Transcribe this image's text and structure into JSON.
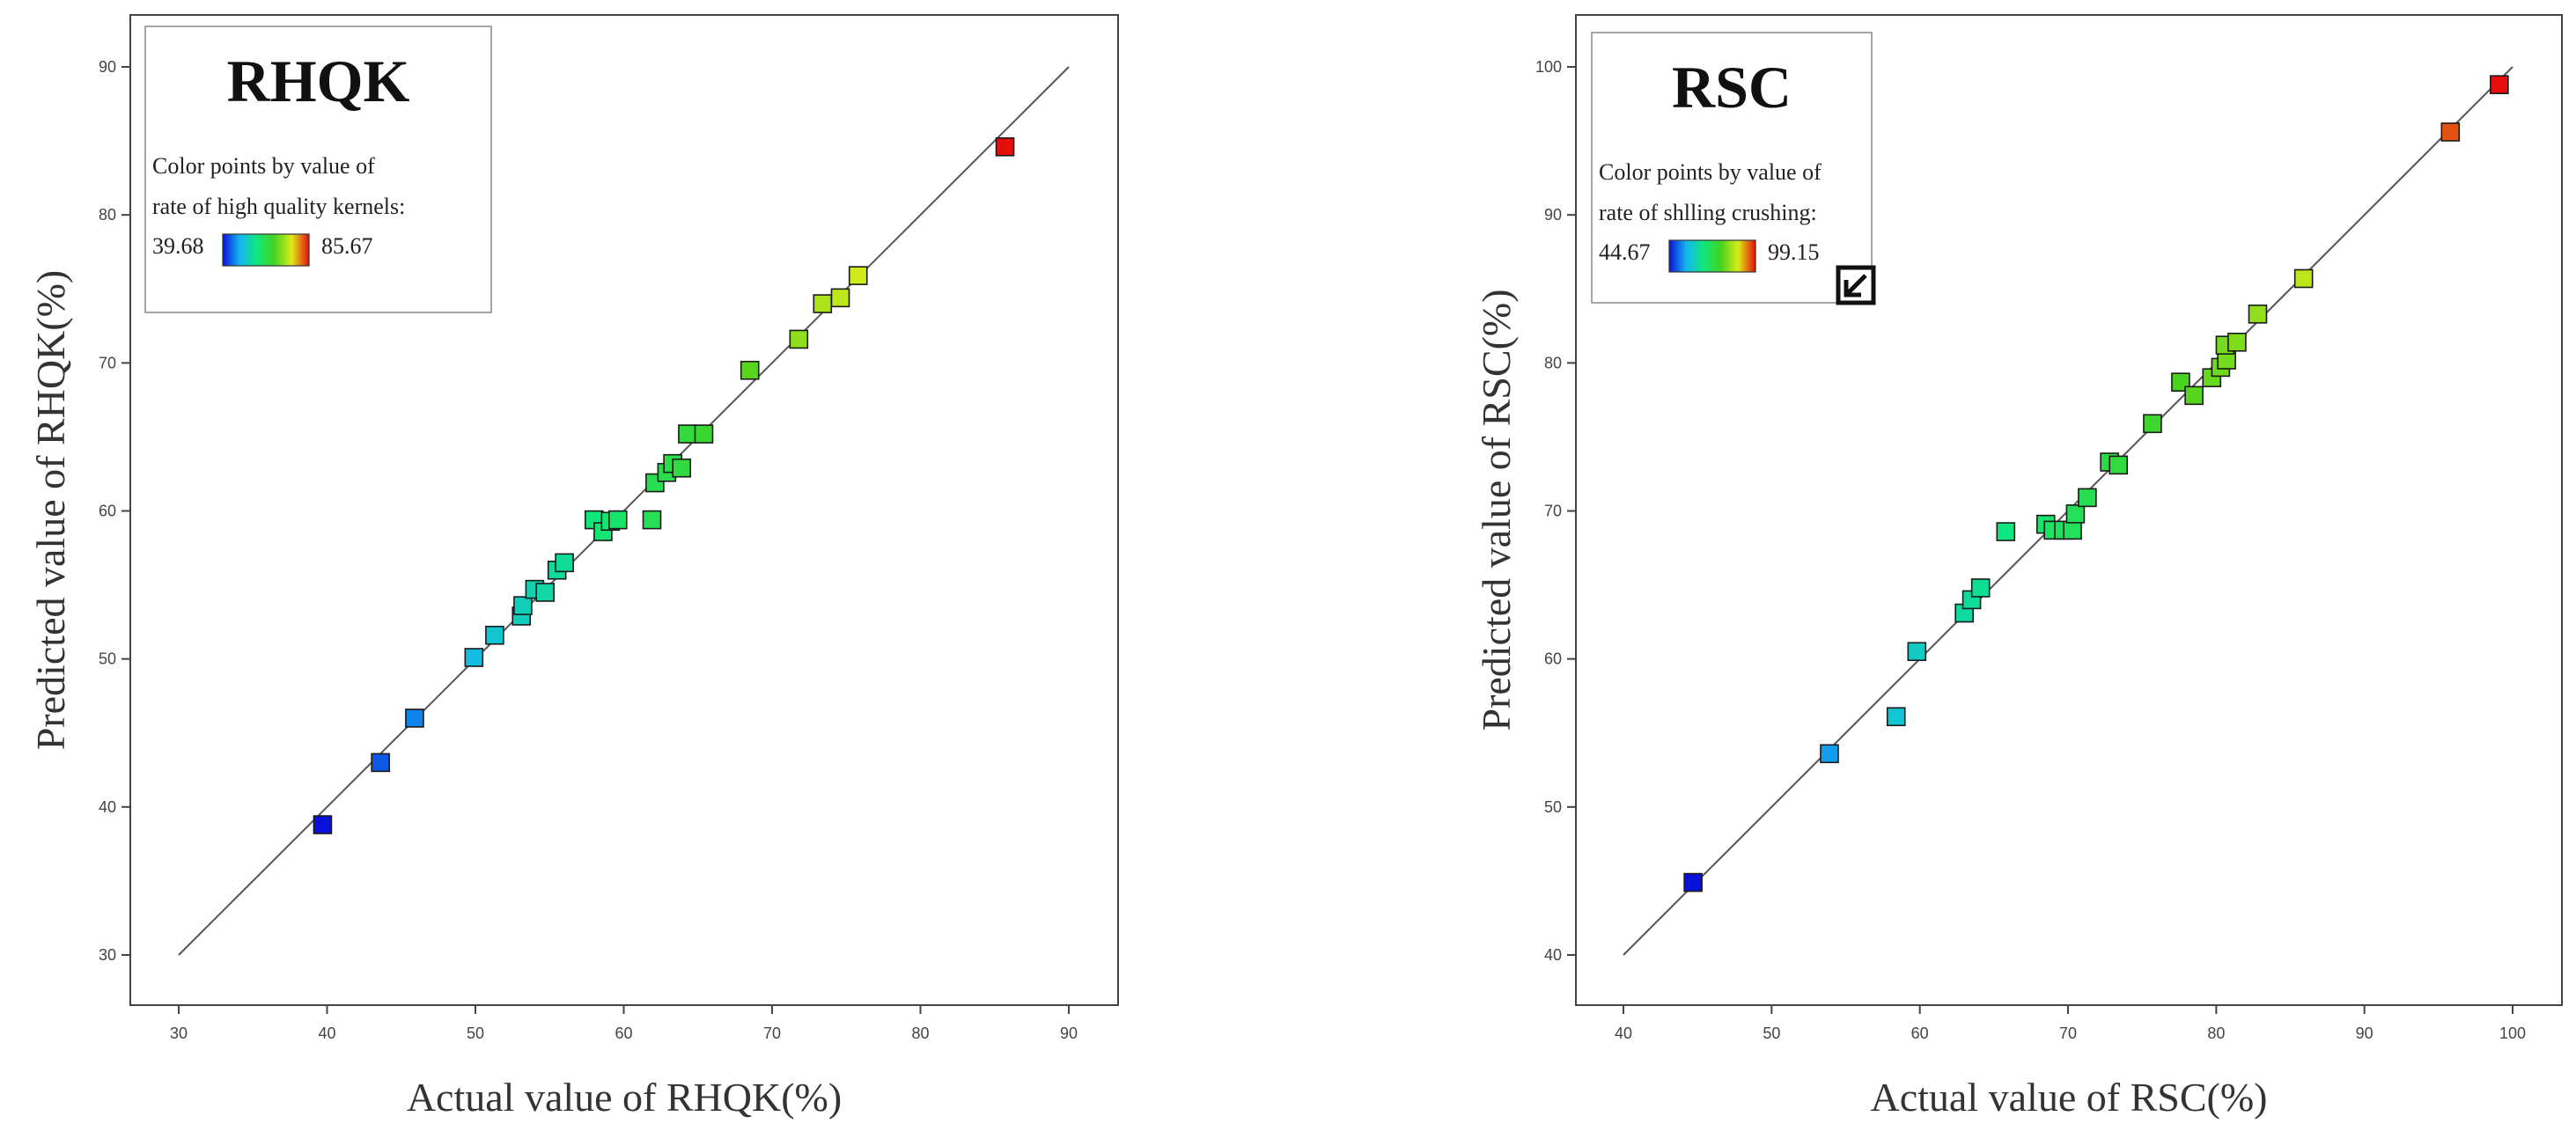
{
  "chart_data": [
    {
      "type": "scatter",
      "id": "rhqk",
      "title": "RHQK",
      "xlabel": "Actual value of  RHQK(%)",
      "ylabel": "Predicted value of RHQK(%)",
      "xlim": [
        30,
        90
      ],
      "ylim": [
        30,
        90
      ],
      "xticks": [
        "30",
        "40",
        "50",
        "60",
        "70",
        "80",
        "90"
      ],
      "yticks": [
        "30",
        "40",
        "50",
        "60",
        "70",
        "80",
        "90"
      ],
      "reference_line": [
        [
          30,
          30
        ],
        [
          90,
          90
        ]
      ],
      "legend": {
        "line1": "Color points by value of",
        "line2": "rate of high quality kernels:",
        "min_label": "39.68",
        "max_label": "85.67",
        "min": 39.68,
        "max": 85.67
      },
      "points": [
        {
          "x": 39.7,
          "y": 38.8
        },
        {
          "x": 43.6,
          "y": 43.0
        },
        {
          "x": 45.9,
          "y": 46.0
        },
        {
          "x": 49.9,
          "y": 50.1
        },
        {
          "x": 51.3,
          "y": 51.6
        },
        {
          "x": 53.1,
          "y": 52.9
        },
        {
          "x": 53.2,
          "y": 53.6
        },
        {
          "x": 54.0,
          "y": 54.7
        },
        {
          "x": 54.7,
          "y": 54.5
        },
        {
          "x": 55.5,
          "y": 56.0
        },
        {
          "x": 56.0,
          "y": 56.5
        },
        {
          "x": 58.0,
          "y": 59.4
        },
        {
          "x": 58.6,
          "y": 58.6
        },
        {
          "x": 59.1,
          "y": 59.3
        },
        {
          "x": 59.6,
          "y": 59.4
        },
        {
          "x": 61.9,
          "y": 59.4
        },
        {
          "x": 62.1,
          "y": 61.9
        },
        {
          "x": 62.9,
          "y": 62.6
        },
        {
          "x": 63.3,
          "y": 63.2
        },
        {
          "x": 63.9,
          "y": 62.9
        },
        {
          "x": 64.3,
          "y": 65.2
        },
        {
          "x": 65.4,
          "y": 65.2
        },
        {
          "x": 68.5,
          "y": 69.5
        },
        {
          "x": 71.8,
          "y": 71.6
        },
        {
          "x": 73.4,
          "y": 74.0
        },
        {
          "x": 74.6,
          "y": 74.4
        },
        {
          "x": 75.8,
          "y": 75.9
        },
        {
          "x": 85.7,
          "y": 84.6
        }
      ]
    },
    {
      "type": "scatter",
      "id": "rsc",
      "title": "RSC",
      "xlabel": "Actual value of  RSC(%)",
      "ylabel": "Predicted value of RSC(%)",
      "xlim": [
        40,
        100
      ],
      "ylim": [
        40,
        100
      ],
      "xticks": [
        "40",
        "50",
        "60",
        "70",
        "80",
        "90",
        "100"
      ],
      "yticks": [
        "40",
        "50",
        "60",
        "70",
        "80",
        "90",
        "100"
      ],
      "reference_line": [
        [
          40,
          40
        ],
        [
          100,
          100
        ]
      ],
      "legend": {
        "line1": "Color points by value of",
        "line2": "rate of shlling crushing:",
        "min_label": "44.67",
        "max_label": "99.15",
        "min": 44.67,
        "max": 99.15
      },
      "points": [
        {
          "x": 44.7,
          "y": 44.9
        },
        {
          "x": 53.9,
          "y": 53.6
        },
        {
          "x": 58.4,
          "y": 56.1
        },
        {
          "x": 59.8,
          "y": 60.5
        },
        {
          "x": 63.0,
          "y": 63.1
        },
        {
          "x": 63.5,
          "y": 64.0
        },
        {
          "x": 64.1,
          "y": 64.8
        },
        {
          "x": 65.8,
          "y": 68.6
        },
        {
          "x": 68.5,
          "y": 69.1
        },
        {
          "x": 69.0,
          "y": 68.7
        },
        {
          "x": 69.7,
          "y": 68.7
        },
        {
          "x": 70.3,
          "y": 68.7
        },
        {
          "x": 70.5,
          "y": 69.8
        },
        {
          "x": 71.3,
          "y": 70.9
        },
        {
          "x": 72.8,
          "y": 73.3
        },
        {
          "x": 73.4,
          "y": 73.1
        },
        {
          "x": 75.7,
          "y": 75.9
        },
        {
          "x": 77.6,
          "y": 78.7
        },
        {
          "x": 78.5,
          "y": 77.8
        },
        {
          "x": 79.7,
          "y": 79.0
        },
        {
          "x": 80.3,
          "y": 79.7
        },
        {
          "x": 80.7,
          "y": 80.2
        },
        {
          "x": 80.6,
          "y": 81.2
        },
        {
          "x": 81.4,
          "y": 81.4
        },
        {
          "x": 82.8,
          "y": 83.3
        },
        {
          "x": 85.9,
          "y": 85.7
        },
        {
          "x": 95.8,
          "y": 95.6
        },
        {
          "x": 99.1,
          "y": 98.8
        }
      ]
    }
  ],
  "colors": {
    "gradient": [
      "#0a12d9",
      "#14b7f0",
      "#0fe87a",
      "#46d21f",
      "#dcec19",
      "#e80d0d"
    ],
    "frame": "#444444",
    "reference_line": "#555555"
  },
  "icons": {
    "right_panel_badge": "expand-arrow-icon"
  }
}
